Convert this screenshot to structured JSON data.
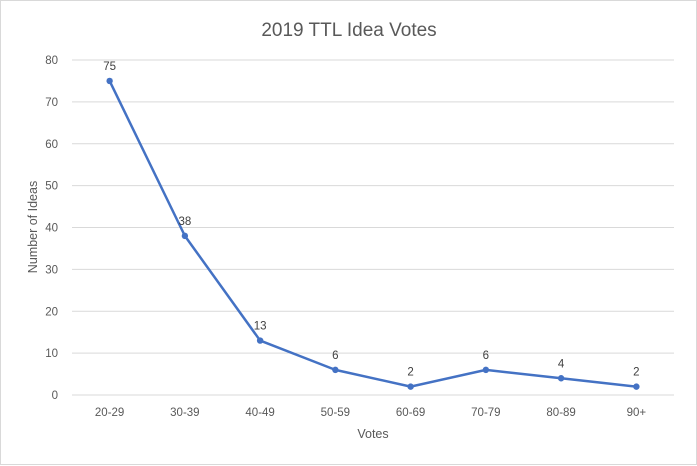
{
  "chart_data": {
    "type": "line",
    "title": "2019 TTL Idea Votes",
    "xlabel": "Votes",
    "ylabel": "Number of Ideas",
    "categories": [
      "20-29",
      "30-39",
      "40-49",
      "50-59",
      "60-69",
      "70-79",
      "80-89",
      "90+"
    ],
    "series": [
      {
        "values": [
          75,
          38,
          13,
          6,
          2,
          6,
          4,
          2
        ]
      }
    ],
    "data_labels": [
      "75",
      "38",
      "13",
      "6",
      "2",
      "6",
      "4",
      "2"
    ],
    "ylim": [
      0,
      80
    ],
    "yticks": [
      0,
      10,
      20,
      30,
      40,
      50,
      60,
      70,
      80
    ],
    "grid": true,
    "legend": "none",
    "colors": {
      "line": "#4472c4",
      "grid": "#d9d9d9",
      "text": "#595959"
    }
  }
}
